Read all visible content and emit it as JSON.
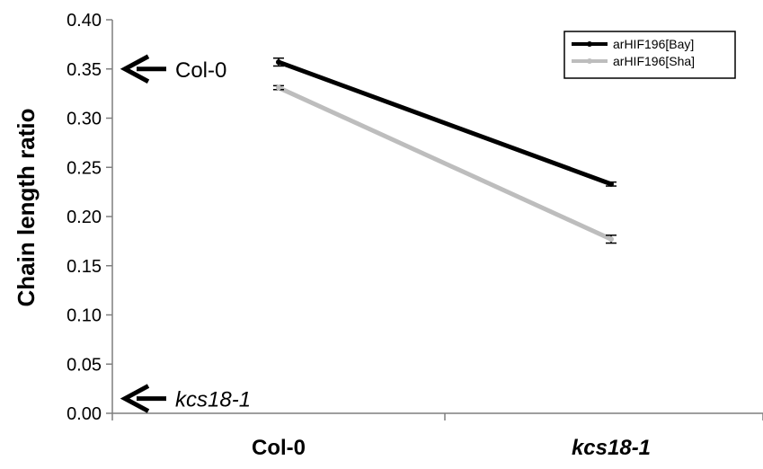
{
  "chart_data": {
    "type": "line",
    "categories": [
      "Col-0",
      "kcs18-1"
    ],
    "category_italic": [
      false,
      true
    ],
    "ylabel": "Chain length ratio",
    "xlabel": "",
    "ylim": [
      0.0,
      0.4
    ],
    "yticks": [
      "0.00",
      "0.05",
      "0.10",
      "0.15",
      "0.20",
      "0.25",
      "0.30",
      "0.35",
      "0.40"
    ],
    "ytick_values": [
      0.0,
      0.05,
      0.1,
      0.15,
      0.2,
      0.25,
      0.3,
      0.35,
      0.4
    ],
    "grid": false,
    "legend_position": "top-right",
    "series": [
      {
        "name": "arHIF196[Bay]",
        "color": "#000000",
        "values": [
          0.357,
          0.233
        ],
        "errors": [
          0.004,
          0.002
        ]
      },
      {
        "name": "arHIF196[Sha]",
        "color": "#bdbdbd",
        "values": [
          0.331,
          0.177
        ],
        "errors": [
          0.002,
          0.004
        ]
      }
    ],
    "annotations": [
      {
        "text": "Col-0",
        "y": 0.35,
        "italic": false
      },
      {
        "text": "kcs18-1",
        "y": 0.015,
        "italic": true
      }
    ]
  }
}
